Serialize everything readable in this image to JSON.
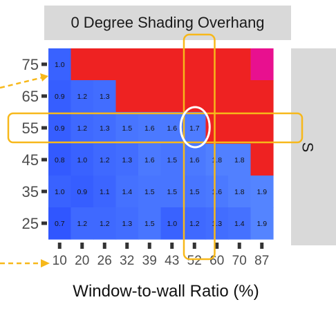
{
  "chart_data": {
    "type": "heatmap",
    "title": "0 Degree Shading Overhang",
    "facet_label": "S",
    "xlabel": "Window-to-wall Ratio (%)",
    "ylabel": "",
    "x_categories": [
      "10",
      "20",
      "26",
      "32",
      "39",
      "43",
      "52",
      "60",
      "70",
      "87"
    ],
    "y_categories": [
      "25",
      "35",
      "45",
      "55",
      "65",
      "75"
    ],
    "colors": {
      "high_red": "#ee2222",
      "magenta": "#e8108f",
      "blue_base": "#3d62ff",
      "highlight_orange": "#f7b81a",
      "circle": "#ffffff"
    },
    "rows": [
      {
        "y": "75",
        "values": [
          1.0,
          null,
          null,
          null,
          null,
          null,
          null,
          null,
          null,
          null
        ],
        "fill": [
          "blue",
          "red",
          "red",
          "red",
          "red",
          "red",
          "red",
          "red",
          "red",
          "magenta"
        ]
      },
      {
        "y": "65",
        "values": [
          0.9,
          1.2,
          1.3,
          null,
          null,
          null,
          null,
          null,
          null,
          null
        ],
        "fill": [
          "blue",
          "blue",
          "blue",
          "red",
          "red",
          "red",
          "red",
          "red",
          "red",
          "red"
        ]
      },
      {
        "y": "55",
        "values": [
          0.9,
          1.2,
          1.3,
          1.5,
          1.6,
          1.6,
          1.7,
          null,
          null,
          null
        ],
        "fill": [
          "blue",
          "blue",
          "blue",
          "blue",
          "blue",
          "blue",
          "blue",
          "red",
          "red",
          "red"
        ]
      },
      {
        "y": "45",
        "values": [
          0.8,
          1.0,
          1.2,
          1.3,
          1.6,
          1.5,
          1.6,
          1.8,
          1.8,
          null
        ],
        "fill": [
          "blue",
          "blue",
          "blue",
          "blue",
          "blue",
          "blue",
          "blue",
          "blue",
          "blue",
          "red"
        ]
      },
      {
        "y": "35",
        "values": [
          1.0,
          0.9,
          1.1,
          1.4,
          1.5,
          1.5,
          1.5,
          1.6,
          1.8,
          1.9
        ],
        "fill": [
          "blue",
          "blue",
          "blue",
          "blue",
          "blue",
          "blue",
          "blue",
          "blue",
          "blue",
          "blue"
        ]
      },
      {
        "y": "25",
        "values": [
          0.7,
          1.2,
          1.2,
          1.3,
          1.5,
          1.0,
          1.2,
          1.3,
          1.4,
          1.9
        ],
        "fill": [
          "blue",
          "blue",
          "blue",
          "blue",
          "blue",
          "blue",
          "blue",
          "blue",
          "blue",
          "blue"
        ]
      }
    ],
    "highlights": {
      "row": "55",
      "column": "52",
      "circled_cell": {
        "x": "52",
        "y": "55"
      }
    }
  }
}
